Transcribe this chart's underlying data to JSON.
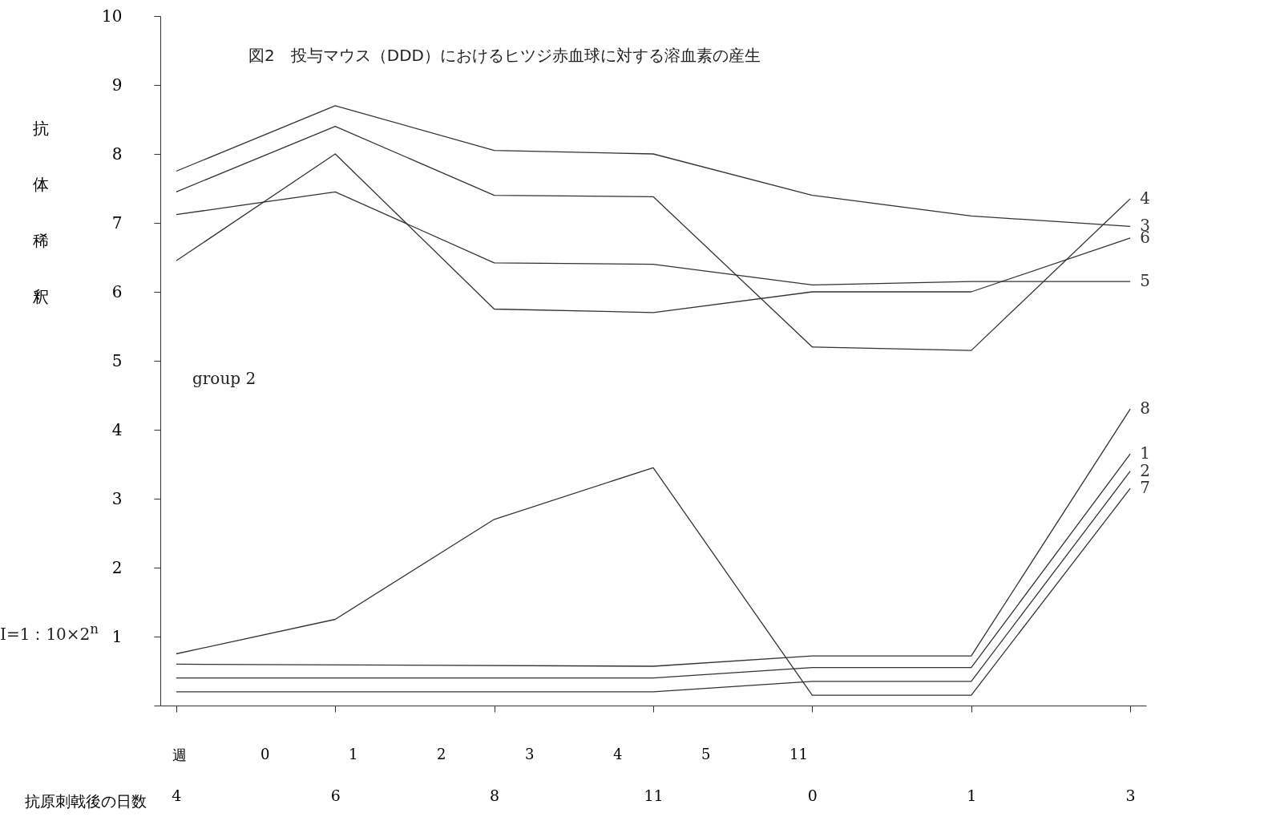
{
  "chart_data": {
    "type": "line",
    "title": "図2　投与マウス（DDD）におけるヒツジ赤血球に対する溶血素の産生",
    "ylabel": "抗体稀釈",
    "xlabel": "抗原刺戟後の日数",
    "categories": [
      "4",
      "6",
      "8",
      "11",
      "0",
      "1",
      "3"
    ],
    "ylim": [
      0,
      10
    ],
    "yticks": [
      {
        "value": 0,
        "label": null
      },
      1,
      2,
      3,
      4,
      5,
      6,
      7,
      8,
      9,
      10
    ],
    "grid": false,
    "legend": false,
    "line_style": "solid",
    "annotations": [
      "group 2",
      "I=1：10×2$^{n}$",
      "週",
      "0",
      "1",
      "2",
      "3",
      "4",
      "5",
      "11"
    ],
    "series": [
      {
        "name": "3",
        "color": "#333333",
        "values": [
          7.75,
          8.7,
          8.05,
          8.0,
          7.4,
          7.1,
          6.95
        ]
      },
      {
        "name": "4",
        "color": "#333333",
        "values": [
          7.45,
          8.4,
          7.4,
          7.38,
          5.2,
          5.15,
          7.35
        ]
      },
      {
        "name": "6",
        "color": "#333333",
        "values": [
          6.45,
          8.0,
          5.75,
          5.7,
          6.0,
          6.0,
          6.78
        ]
      },
      {
        "name": "5",
        "color": "#333333",
        "values": [
          7.12,
          7.45,
          6.42,
          6.4,
          6.1,
          6.15,
          6.15
        ]
      },
      {
        "name": "7",
        "color": "#333333",
        "values": [
          0.75,
          1.25,
          2.7,
          3.45,
          0.15,
          0.15,
          3.15
        ]
      },
      {
        "name": "8",
        "color": "#333333",
        "values": [
          0.6,
          null,
          null,
          0.57,
          0.72,
          0.72,
          4.3
        ]
      },
      {
        "name": "1",
        "color": "#333333",
        "values": [
          0.4,
          null,
          null,
          0.4,
          0.55,
          0.55,
          3.65
        ]
      },
      {
        "name": "2",
        "color": "#333333",
        "values": [
          0.2,
          null,
          null,
          0.2,
          0.35,
          0.35,
          3.4
        ]
      }
    ]
  }
}
